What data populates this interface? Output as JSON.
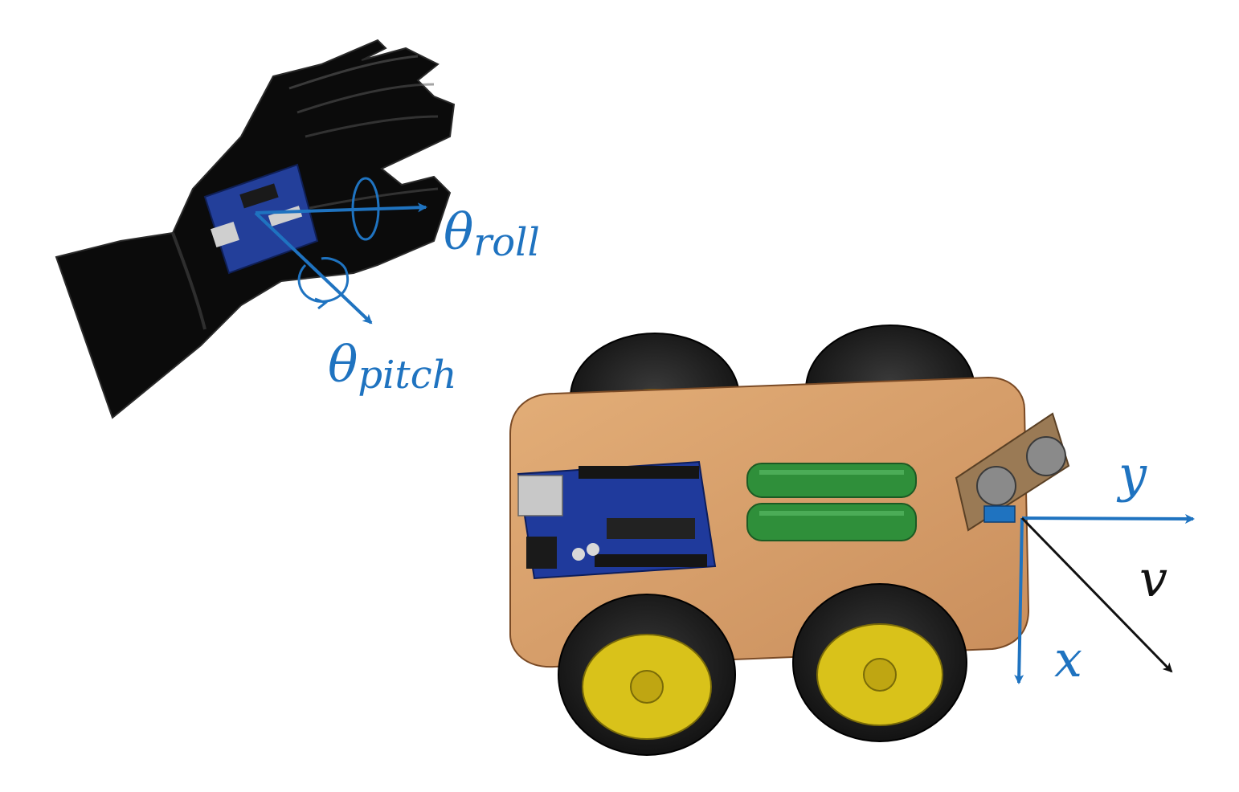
{
  "labels": {
    "theta_roll": {
      "symbol": "θ",
      "subscript": "roll"
    },
    "theta_pitch": {
      "symbol": "θ",
      "subscript": "pitch"
    },
    "axis_y": "y",
    "axis_x": "x",
    "velocity": "v"
  },
  "colors": {
    "axis_blue": "#1f73c0",
    "velocity_black": "#111111",
    "glove": "#0b0b0b",
    "chassis_wood": "#d9a06a",
    "tire": "#1a1a1a",
    "rim_yellow": "#d9c21a",
    "arduino_blue": "#1f3a9c",
    "battery_green": "#2f8f3a"
  },
  "icons": [
    "glove-with-controller",
    "robot-car"
  ]
}
